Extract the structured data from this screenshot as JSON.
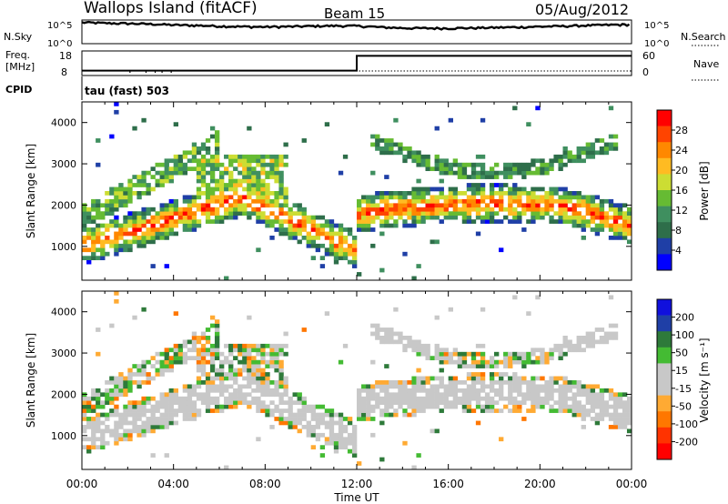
{
  "header": {
    "station": "Wallops Island (fitACF)",
    "beam": "Beam 15",
    "date": "05/Aug/2012"
  },
  "top_panel": {
    "left_label": "N.Sky",
    "right_label": "N.Search",
    "left_ticks": [
      "10^5",
      "10^0"
    ],
    "right_ticks": [
      "10^5",
      "10^0"
    ]
  },
  "freq_panel": {
    "left_label_1": "Freq.",
    "left_label_2": "[MHz]",
    "right_label": "Nave",
    "left_ticks": [
      "18",
      "8"
    ],
    "right_ticks": [
      "60",
      "0"
    ]
  },
  "cpid": {
    "label": "CPID",
    "mode": "tau (fast) 503"
  },
  "colors": {
    "power_scale": [
      "#0000ff",
      "#1f3fa6",
      "#2e6e4a",
      "#3f8f5f",
      "#66bb33",
      "#ccdd33",
      "#ffbb22",
      "#ff8800",
      "#ff4400",
      "#ff0000"
    ],
    "velocity_scale": [
      "#1010dd",
      "#1f3fa6",
      "#2e7a3a",
      "#44bb33",
      "#c8c8c8",
      "#c8c8c8",
      "#ffaa33",
      "#ff7700",
      "#ff3300",
      "#ff0000"
    ],
    "ground_scatter": "#c8c8c8"
  },
  "chart_data": [
    {
      "type": "line",
      "title": "N.Sky / N.Search",
      "x": [
        0,
        1,
        2,
        3,
        4,
        5,
        6,
        7,
        8,
        9,
        10,
        11,
        12,
        13,
        14,
        15,
        16,
        17,
        18,
        19,
        20,
        21,
        22,
        23,
        24
      ],
      "y_scale": "log",
      "ylim": [
        1,
        100000
      ],
      "series": [
        {
          "name": "N.Sky",
          "values": [
            30000,
            22000,
            18000,
            14000,
            9000,
            7000,
            5000,
            4000,
            3500,
            4000,
            5000,
            6000,
            5500,
            3000,
            2000,
            1800,
            1800,
            2000,
            2500,
            3000,
            4000,
            5000,
            7000,
            9000,
            11000
          ]
        }
      ]
    },
    {
      "type": "line",
      "title": "Freq / Nave",
      "x": [
        0,
        12,
        12,
        24
      ],
      "series": [
        {
          "name": "Freq.",
          "values": [
            10,
            10,
            16,
            16
          ]
        },
        {
          "name": "Nave",
          "values": [
            2,
            2,
            2,
            2
          ]
        }
      ],
      "ylim": [
        8,
        18
      ]
    },
    {
      "type": "heatmap",
      "title": "Power",
      "xlabel": "Time UT",
      "ylabel": "Slant Range [km]",
      "colorbar_label": "Power [dB]",
      "xticks": [
        "00:00",
        "04:00",
        "08:00",
        "12:00",
        "16:00",
        "20:00",
        "00:00"
      ],
      "yticks": [
        "1000",
        "2000",
        "3000",
        "4000"
      ],
      "colorbar_ticks": [
        "28",
        "24",
        "20",
        "16",
        "12",
        "8",
        "4"
      ],
      "xlim": [
        0,
        24
      ],
      "ylim": [
        180,
        4500
      ],
      "clim": [
        0,
        30
      ]
    },
    {
      "type": "heatmap",
      "title": "Velocity",
      "xlabel": "Time UT",
      "ylabel": "Slant Range [km]",
      "colorbar_label": "Velocity [m s⁻¹]",
      "xticks": [
        "00:00",
        "04:00",
        "08:00",
        "12:00",
        "16:00",
        "20:00",
        "00:00"
      ],
      "yticks": [
        "1000",
        "2000",
        "3000",
        "4000"
      ],
      "colorbar_ticks": [
        "200",
        "100",
        "50",
        "15",
        "-15",
        "-50",
        "-100",
        "-200"
      ],
      "xlim": [
        0,
        24
      ],
      "ylim": [
        180,
        4500
      ],
      "clim": [
        -250,
        250
      ]
    }
  ]
}
